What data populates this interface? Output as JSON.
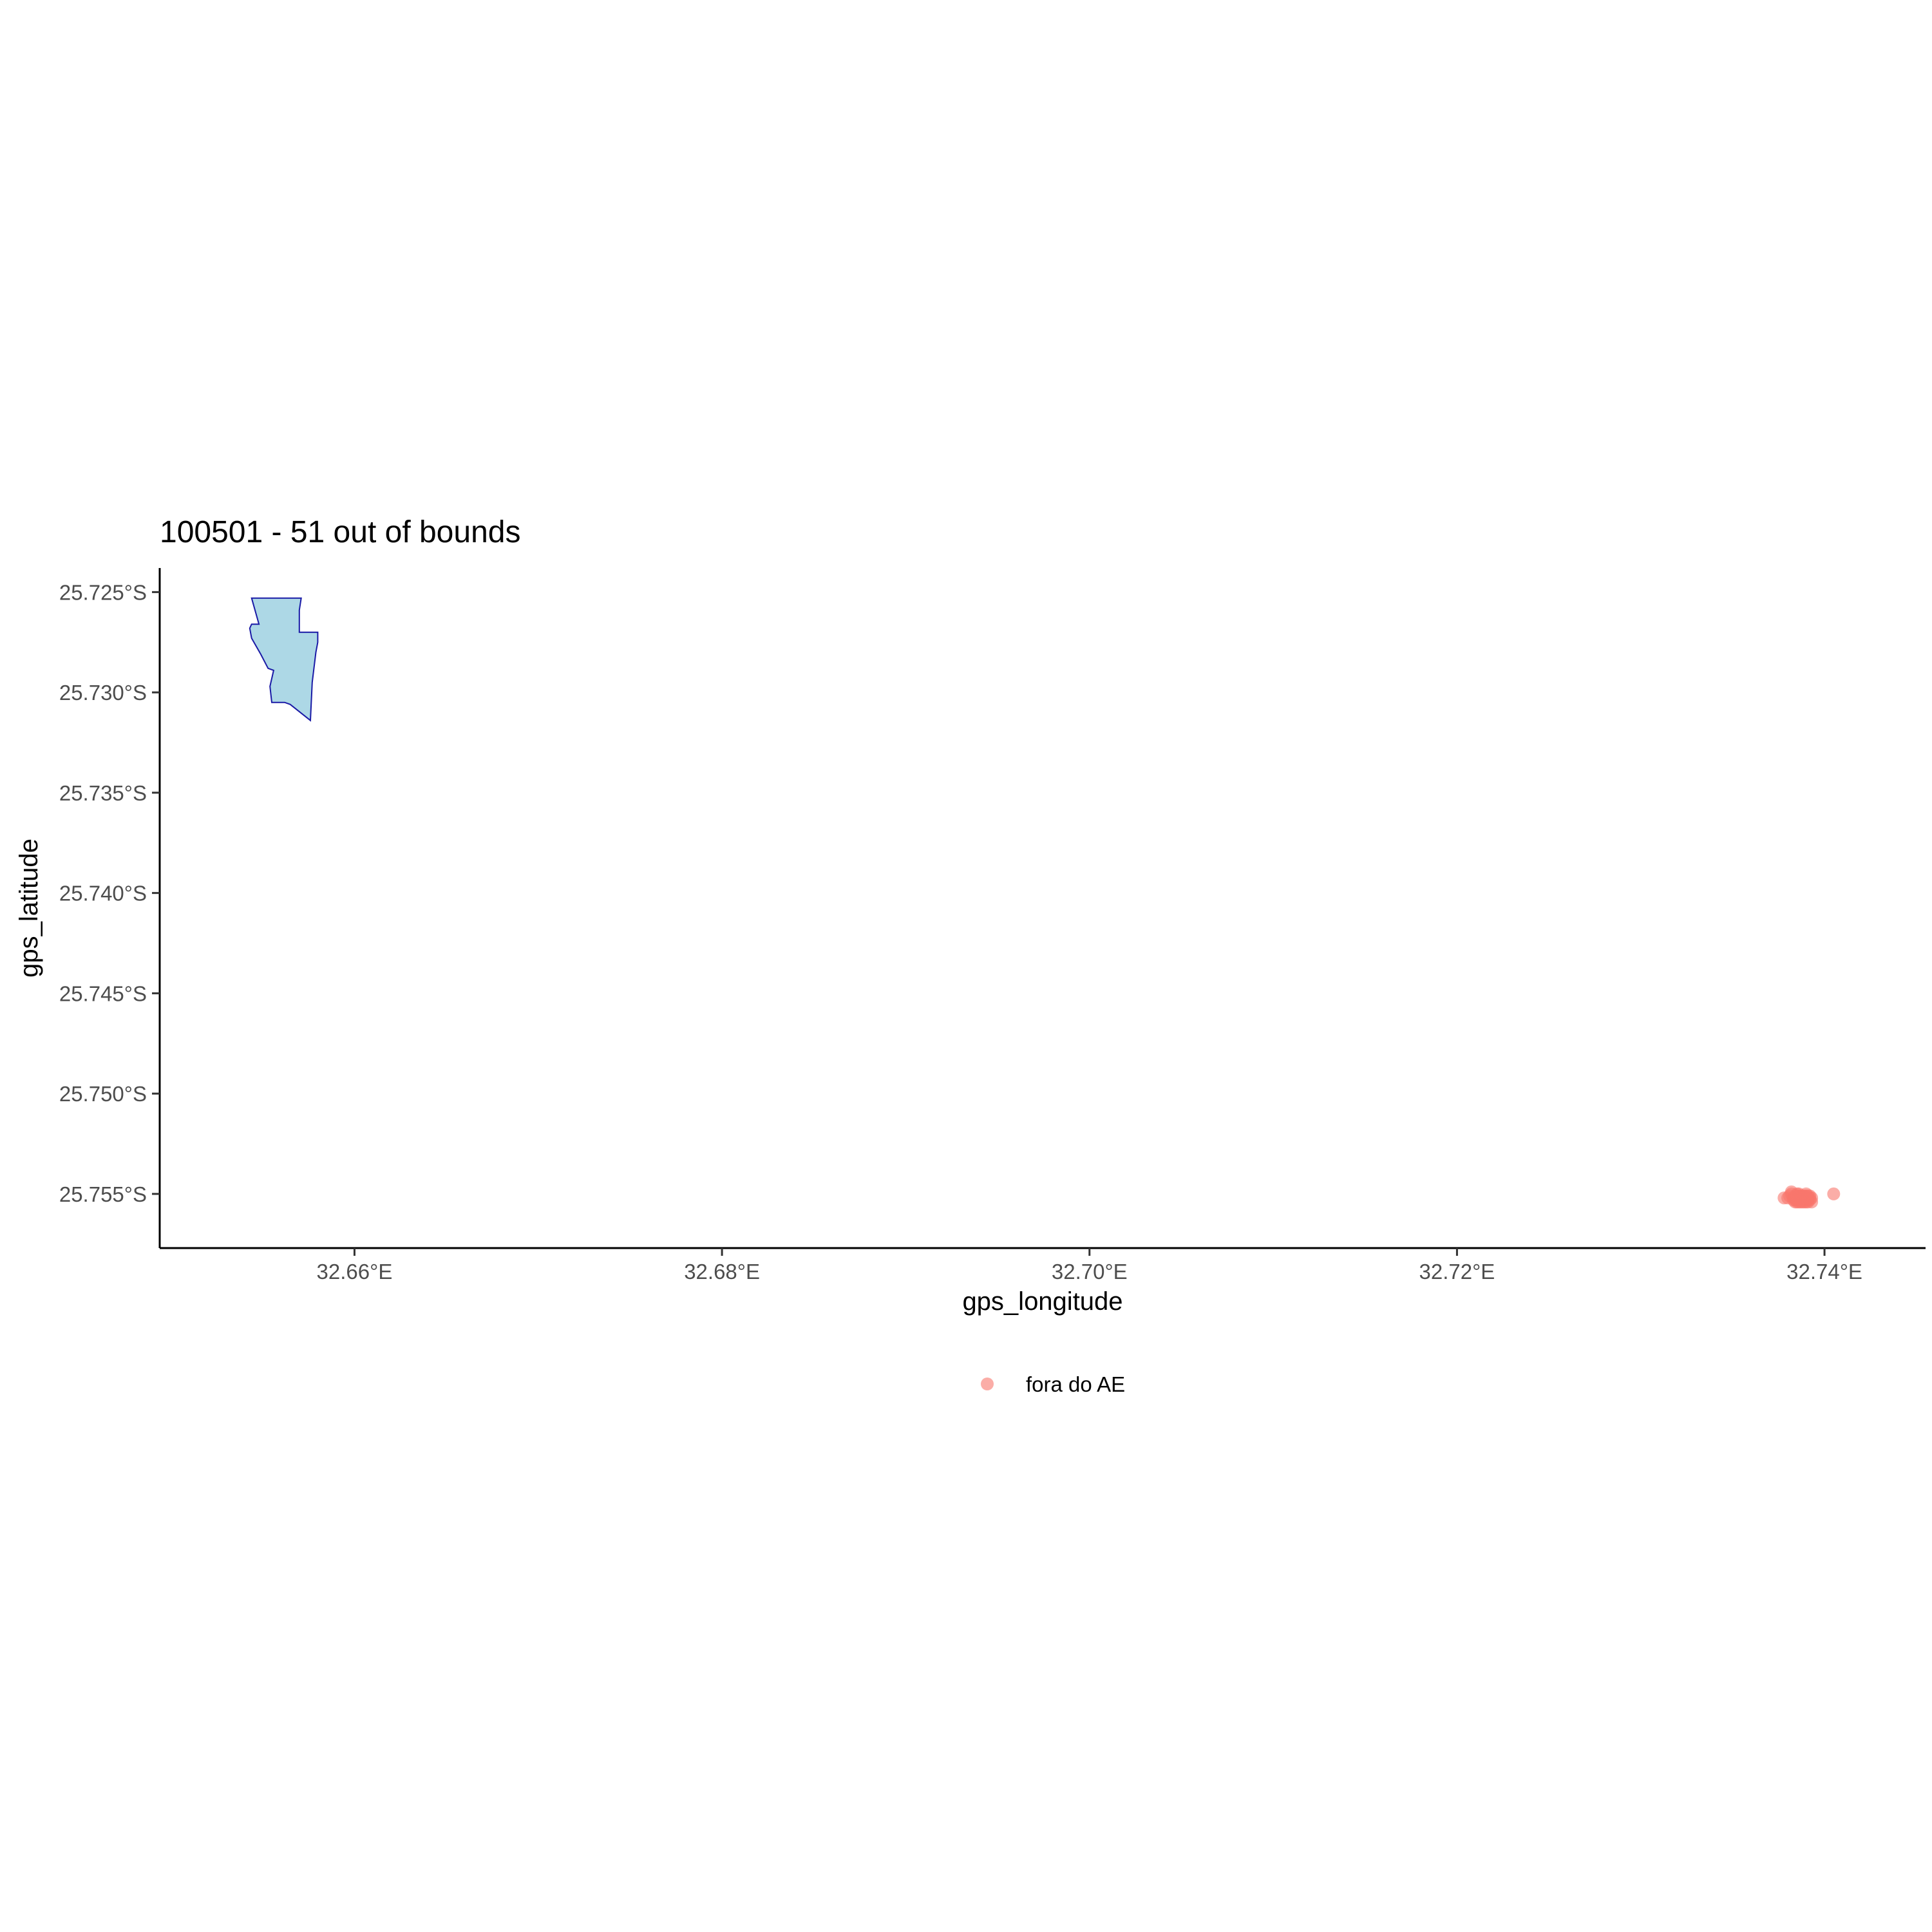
{
  "chart_data": {
    "type": "scatter",
    "title": "100501 - 51 out of bounds",
    "xlabel": "gps_longitude",
    "ylabel": "gps_latitude",
    "xlim": [
      32.6494,
      32.7455
    ],
    "ylim": [
      -25.7577,
      -25.7238
    ],
    "x_ticks": [
      {
        "value": 32.66,
        "label": "32.66°E"
      },
      {
        "value": 32.68,
        "label": "32.68°E"
      },
      {
        "value": 32.7,
        "label": "32.70°E"
      },
      {
        "value": 32.72,
        "label": "32.72°E"
      },
      {
        "value": 32.74,
        "label": "32.74°E"
      }
    ],
    "y_ticks": [
      {
        "value": -25.725,
        "label": "25.725°S"
      },
      {
        "value": -25.73,
        "label": "25.730°S"
      },
      {
        "value": -25.735,
        "label": "25.735°S"
      },
      {
        "value": -25.74,
        "label": "25.740°S"
      },
      {
        "value": -25.745,
        "label": "25.745°S"
      },
      {
        "value": -25.75,
        "label": "25.750°S"
      },
      {
        "value": -25.755,
        "label": "25.755°S"
      }
    ],
    "grid": false,
    "legend_position": "bottom",
    "polygon": {
      "fill": "#add8e6",
      "stroke": "#1a1aa6",
      "points": [
        [
          32.6545,
          -25.7253
        ],
        [
          32.6571,
          -25.7253
        ],
        [
          32.657,
          -25.7259
        ],
        [
          32.657,
          -25.727
        ],
        [
          32.658,
          -25.727
        ],
        [
          32.658,
          -25.7275
        ],
        [
          32.6579,
          -25.728
        ],
        [
          32.6577,
          -25.7295
        ],
        [
          32.6576,
          -25.7314
        ],
        [
          32.6565,
          -25.7306
        ],
        [
          32.6562,
          -25.7305
        ],
        [
          32.6555,
          -25.7305
        ],
        [
          32.6554,
          -25.7297
        ],
        [
          32.6556,
          -25.7289
        ],
        [
          32.6553,
          -25.7288
        ],
        [
          32.6549,
          -25.7281
        ],
        [
          32.6544,
          -25.7273
        ],
        [
          32.6543,
          -25.7268
        ],
        [
          32.6544,
          -25.7266
        ],
        [
          32.6548,
          -25.7266
        ],
        [
          32.6544,
          -25.7253
        ]
      ]
    },
    "series": [
      {
        "name": "fora do AE",
        "color": "#f8766d",
        "x": [
          32.7382,
          32.7385,
          32.7387,
          32.7388,
          32.739,
          32.7391,
          32.7392,
          32.7386,
          32.7389,
          32.7384,
          32.7393,
          32.7381,
          32.7385,
          32.7388,
          32.739,
          32.7383,
          32.7386,
          32.7389,
          32.7391,
          32.7387,
          32.738,
          32.7385,
          32.7392,
          32.7388,
          32.7384,
          32.7386,
          32.739,
          32.7393,
          32.7382,
          32.7387,
          32.7389,
          32.7391,
          32.7385,
          32.7388,
          32.7386,
          32.7384,
          32.739,
          32.7387,
          32.7389,
          32.7392,
          32.7383,
          32.7386,
          32.7388,
          32.7391,
          32.7385,
          32.7387,
          32.739,
          32.7384,
          32.7389,
          32.7378,
          32.7405
        ],
        "y": [
          -25.7549,
          -25.755,
          -25.7551,
          -25.7552,
          -25.7551,
          -25.7553,
          -25.7552,
          -25.7553,
          -25.7554,
          -25.7552,
          -25.7554,
          -25.7551,
          -25.7554,
          -25.7553,
          -25.755,
          -25.7553,
          -25.7551,
          -25.7552,
          -25.7554,
          -25.7553,
          -25.7552,
          -25.7552,
          -25.7553,
          -25.7551,
          -25.7551,
          -25.7552,
          -25.7553,
          -25.7552,
          -25.755,
          -25.7554,
          -25.7551,
          -25.7552,
          -25.7553,
          -25.7552,
          -25.7554,
          -25.7553,
          -25.7554,
          -25.7552,
          -25.7553,
          -25.7551,
          -25.7552,
          -25.755,
          -25.7554,
          -25.7551,
          -25.7551,
          -25.7553,
          -25.7552,
          -25.7554,
          -25.7552,
          -25.7552,
          -25.755
        ]
      }
    ]
  }
}
